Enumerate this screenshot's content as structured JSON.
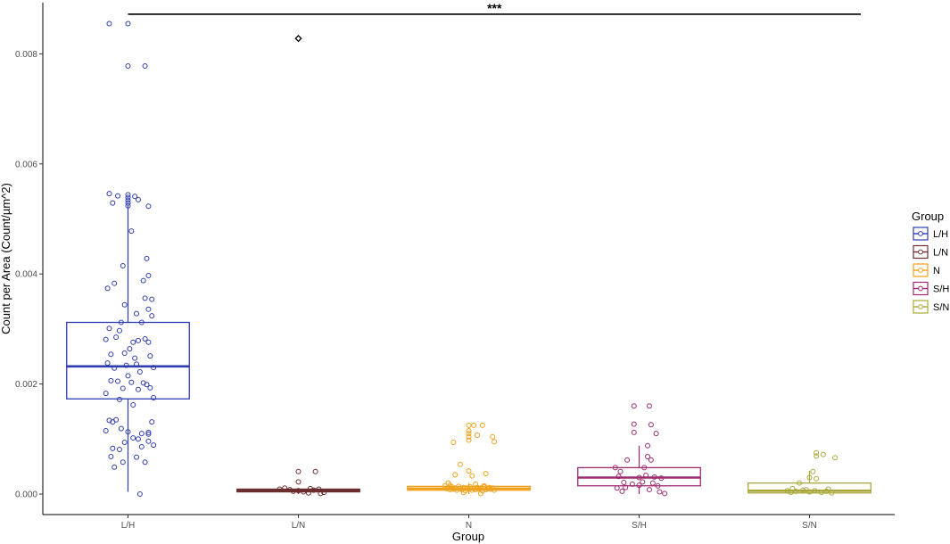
{
  "chart_data": {
    "type": "box",
    "xlabel": "Group",
    "ylabel": "Count per Area (Count/µm^2)",
    "ylim": [
      -0.0003,
      0.0088
    ],
    "y_ticks": [
      0.0,
      0.002,
      0.004,
      0.006,
      0.008
    ],
    "y_tick_labels": [
      "0.000",
      "0.002",
      "0.004",
      "0.006",
      "0.008"
    ],
    "grid": false,
    "categories": [
      "L/H",
      "L/N",
      "N",
      "S/H",
      "S/N"
    ],
    "legend": {
      "title": "Group",
      "position": "right"
    },
    "significance": {
      "from": "L/H",
      "to": "S/N",
      "y": 0.00872,
      "label": "***"
    },
    "series": [
      {
        "name": "L/H",
        "color": "#2E3CB0",
        "box": {
          "q1": 0.00173,
          "median": 0.00232,
          "q3": 0.00312,
          "whisker_low": 4e-05,
          "whisker_high": 0.00525
        },
        "outliers": [],
        "points": [
          [
            -0.11,
            0.00855
          ],
          [
            0.0,
            0.00855
          ],
          [
            0.0,
            0.00778
          ],
          [
            0.1,
            0.00778
          ],
          [
            -0.11,
            0.00546
          ],
          [
            -0.06,
            0.00542
          ],
          [
            0.0,
            0.00544
          ],
          [
            0.0,
            0.00539
          ],
          [
            0.0,
            0.00534
          ],
          [
            0.0,
            0.00529
          ],
          [
            0.0,
            0.00524
          ],
          [
            0.04,
            0.00541
          ],
          [
            0.06,
            0.00535
          ],
          [
            0.12,
            0.00523
          ],
          [
            -0.09,
            0.00529
          ],
          [
            0.02,
            0.00478
          ],
          [
            -0.03,
            0.00415
          ],
          [
            0.09,
            0.00388
          ],
          [
            0.11,
            0.00428
          ],
          [
            0.12,
            0.00397
          ],
          [
            -0.12,
            0.00374
          ],
          [
            -0.08,
            0.00383
          ],
          [
            -0.02,
            0.00344
          ],
          [
            0.1,
            0.00356
          ],
          [
            0.14,
            0.00354
          ],
          [
            0.12,
            0.00336
          ],
          [
            -0.12,
            0.00238
          ],
          [
            -0.1,
            0.00254
          ],
          [
            -0.07,
            0.00285
          ],
          [
            -0.13,
            0.00281
          ],
          [
            -0.05,
            0.00297
          ],
          [
            -0.04,
            0.00312
          ],
          [
            -0.02,
            0.00256
          ],
          [
            0.01,
            0.00264
          ],
          [
            0.03,
            0.00276
          ],
          [
            0.06,
            0.00279
          ],
          [
            0.1,
            0.00282
          ],
          [
            0.12,
            0.00276
          ],
          [
            0.08,
            0.00312
          ],
          [
            0.14,
            0.00324
          ],
          [
            0.04,
            0.00247
          ],
          [
            -0.08,
            0.00229
          ],
          [
            0.05,
            0.00236
          ],
          [
            0.13,
            0.00251
          ],
          [
            0.15,
            0.0023
          ],
          [
            0.07,
            0.00222
          ],
          [
            -0.1,
            0.00206
          ],
          [
            -0.06,
            0.00205
          ],
          [
            0.0,
            0.00215
          ],
          [
            0.02,
            0.00203
          ],
          [
            0.11,
            0.00199
          ],
          [
            0.13,
            0.00193
          ],
          [
            -0.13,
            0.00183
          ],
          [
            -0.03,
            0.00192
          ],
          [
            0.06,
            0.0019
          ],
          [
            0.09,
            0.00202
          ],
          [
            -0.05,
            0.00172
          ],
          [
            0.03,
            0.00162
          ],
          [
            0.15,
            0.00175
          ],
          [
            -0.01,
            0.00234
          ],
          [
            -0.11,
            0.00301
          ],
          [
            0.05,
            0.00328
          ],
          [
            -0.11,
            0.00134
          ],
          [
            -0.09,
            0.00131
          ],
          [
            -0.07,
            0.00135
          ],
          [
            -0.04,
            0.00119
          ],
          [
            0.0,
            0.00113
          ],
          [
            0.03,
            0.00102
          ],
          [
            0.06,
            0.001
          ],
          [
            0.08,
            0.0011
          ],
          [
            0.12,
            0.00112
          ],
          [
            0.14,
            0.00131
          ],
          [
            -0.13,
            0.00115
          ],
          [
            -0.09,
            0.00083
          ],
          [
            -0.05,
            0.00081
          ],
          [
            -0.02,
            0.00094
          ],
          [
            0.08,
            0.00086
          ],
          [
            0.12,
            0.00096
          ],
          [
            0.15,
            0.00089
          ],
          [
            -0.08,
            0.00049
          ],
          [
            -0.03,
            0.00058
          ],
          [
            0.05,
            0.00067
          ],
          [
            0.1,
            0.00058
          ],
          [
            0.07,
            0.0
          ],
          [
            -0.1,
            0.00068
          ],
          [
            0.12,
            0.00109
          ]
        ]
      },
      {
        "name": "L/N",
        "color": "#6B2E2E",
        "box": {
          "q1": 4e-05,
          "median": 6e-05,
          "q3": 9e-05,
          "whisker_low": 0.0,
          "whisker_high": 0.00011
        },
        "outliers": [
          0.00828
        ],
        "points": [
          [
            -0.11,
            9e-05
          ],
          [
            -0.05,
            8e-05
          ],
          [
            0.0,
            6e-05
          ],
          [
            0.03,
            4e-05
          ],
          [
            0.06,
            2e-05
          ],
          [
            0.09,
            7e-05
          ],
          [
            0.12,
            9e-05
          ],
          [
            0.15,
            3e-05
          ],
          [
            -0.08,
            0.00011
          ],
          [
            0.0,
            0.00041
          ],
          [
            0.1,
            0.00041
          ],
          [
            0.0,
            0.00022
          ],
          [
            -0.03,
            5e-05
          ],
          [
            0.13,
            1e-05
          ],
          [
            0.07,
            0.0001
          ]
        ]
      },
      {
        "name": "N",
        "color": "#F0A21E",
        "box": {
          "q1": 7e-05,
          "median": 0.0001,
          "q3": 0.00014,
          "whisker_low": 0.0,
          "whisker_high": 0.0002
        },
        "outliers": [],
        "points": [
          [
            0.0,
            0.00125
          ],
          [
            0.0,
            0.00115
          ],
          [
            0.0,
            0.0011
          ],
          [
            0.0,
            0.00104
          ],
          [
            0.0,
            0.00098
          ],
          [
            0.03,
            0.00125
          ],
          [
            0.05,
            0.00107
          ],
          [
            0.08,
            0.00125
          ],
          [
            0.14,
            0.00104
          ],
          [
            0.15,
            0.00095
          ],
          [
            -0.09,
            0.00094
          ],
          [
            -0.05,
            0.00054
          ],
          [
            0.0,
            0.00042
          ],
          [
            0.02,
            0.00033
          ],
          [
            -0.08,
            0.00035
          ],
          [
            0.1,
            0.00037
          ],
          [
            -0.12,
            0.0002
          ],
          [
            -0.14,
            0.00015
          ],
          [
            -0.13,
            0.0001
          ],
          [
            -0.12,
            0.00012
          ],
          [
            -0.11,
            8e-05
          ],
          [
            -0.1,
            0.00013
          ],
          [
            -0.09,
            9e-05
          ],
          [
            -0.08,
            0.00011
          ],
          [
            -0.07,
            7e-05
          ],
          [
            -0.06,
            0.00014
          ],
          [
            -0.05,
            0.0001
          ],
          [
            -0.04,
            8e-05
          ],
          [
            -0.03,
            0.00012
          ],
          [
            -0.02,
            6e-05
          ],
          [
            -0.01,
            0.00011
          ],
          [
            0.0,
            9e-05
          ],
          [
            0.01,
            0.00013
          ],
          [
            0.02,
            7e-05
          ],
          [
            0.03,
            0.0001
          ],
          [
            0.04,
            8e-05
          ],
          [
            0.05,
            0.00012
          ],
          [
            0.06,
            9e-05
          ],
          [
            0.07,
            0.00011
          ],
          [
            0.08,
            6e-05
          ],
          [
            0.09,
            0.00013
          ],
          [
            0.1,
            8e-05
          ],
          [
            0.11,
            0.0001
          ],
          [
            0.12,
            0.00012
          ],
          [
            0.13,
            9e-05
          ],
          [
            0.14,
            0.00011
          ],
          [
            0.15,
            7e-05
          ],
          [
            -0.11,
            0.00016
          ],
          [
            0.04,
            0.00018
          ],
          [
            0.09,
            0.00015
          ],
          [
            -0.03,
            3e-05
          ],
          [
            0.07,
            1e-05
          ]
        ]
      },
      {
        "name": "S/H",
        "color": "#9E2A6E",
        "box": {
          "q1": 0.00015,
          "median": 0.0003,
          "q3": 0.00048,
          "whisker_low": 0.0,
          "whisker_high": 0.00088
        },
        "outliers": [],
        "points": [
          [
            -0.03,
            0.0016
          ],
          [
            0.06,
            0.0016
          ],
          [
            -0.03,
            0.00127
          ],
          [
            -0.03,
            0.00112
          ],
          [
            0.07,
            0.00126
          ],
          [
            0.1,
            0.0011
          ],
          [
            0.05,
            0.00088
          ],
          [
            0.05,
            0.00068
          ],
          [
            0.07,
            0.00062
          ],
          [
            -0.07,
            0.00062
          ],
          [
            0.03,
            0.00048
          ],
          [
            -0.14,
            0.00048
          ],
          [
            -0.11,
            0.00041
          ],
          [
            -0.12,
            0.00032
          ],
          [
            0.0,
            0.0003
          ],
          [
            0.04,
            0.00034
          ],
          [
            0.09,
            0.00031
          ],
          [
            0.13,
            0.00029
          ],
          [
            -0.09,
            0.00021
          ],
          [
            -0.04,
            0.00018
          ],
          [
            0.0,
            0.00016
          ],
          [
            0.02,
            0.00022
          ],
          [
            0.08,
            0.0002
          ],
          [
            0.11,
            0.00015
          ],
          [
            -0.13,
            0.00011
          ],
          [
            -0.1,
            5e-05
          ],
          [
            -0.08,
            0.00012
          ],
          [
            0.12,
            4e-05
          ],
          [
            0.15,
            1e-05
          ],
          [
            0.06,
            8e-05
          ]
        ]
      },
      {
        "name": "S/N",
        "color": "#A8A83A",
        "box": {
          "q1": 2e-05,
          "median": 6e-05,
          "q3": 0.0002,
          "whisker_low": 0.0,
          "whisker_high": 0.00042
        },
        "outliers": [],
        "points": [
          [
            0.04,
            0.00075
          ],
          [
            0.04,
            0.00069
          ],
          [
            0.08,
            0.00072
          ],
          [
            0.15,
            0.00066
          ],
          [
            0.02,
            0.00041
          ],
          [
            0.0,
            0.0003
          ],
          [
            0.04,
            0.00028
          ],
          [
            -0.06,
            0.0002
          ],
          [
            -0.1,
            0.0001
          ],
          [
            -0.13,
            6e-05
          ],
          [
            -0.08,
            5e-05
          ],
          [
            -0.04,
            7e-05
          ],
          [
            0.0,
            4e-05
          ],
          [
            0.03,
            6e-05
          ],
          [
            0.07,
            3e-05
          ],
          [
            0.1,
            5e-05
          ],
          [
            0.13,
            2e-05
          ],
          [
            -0.02,
            8e-05
          ],
          [
            0.11,
            9e-05
          ],
          [
            -0.11,
            3e-05
          ]
        ]
      }
    ]
  }
}
